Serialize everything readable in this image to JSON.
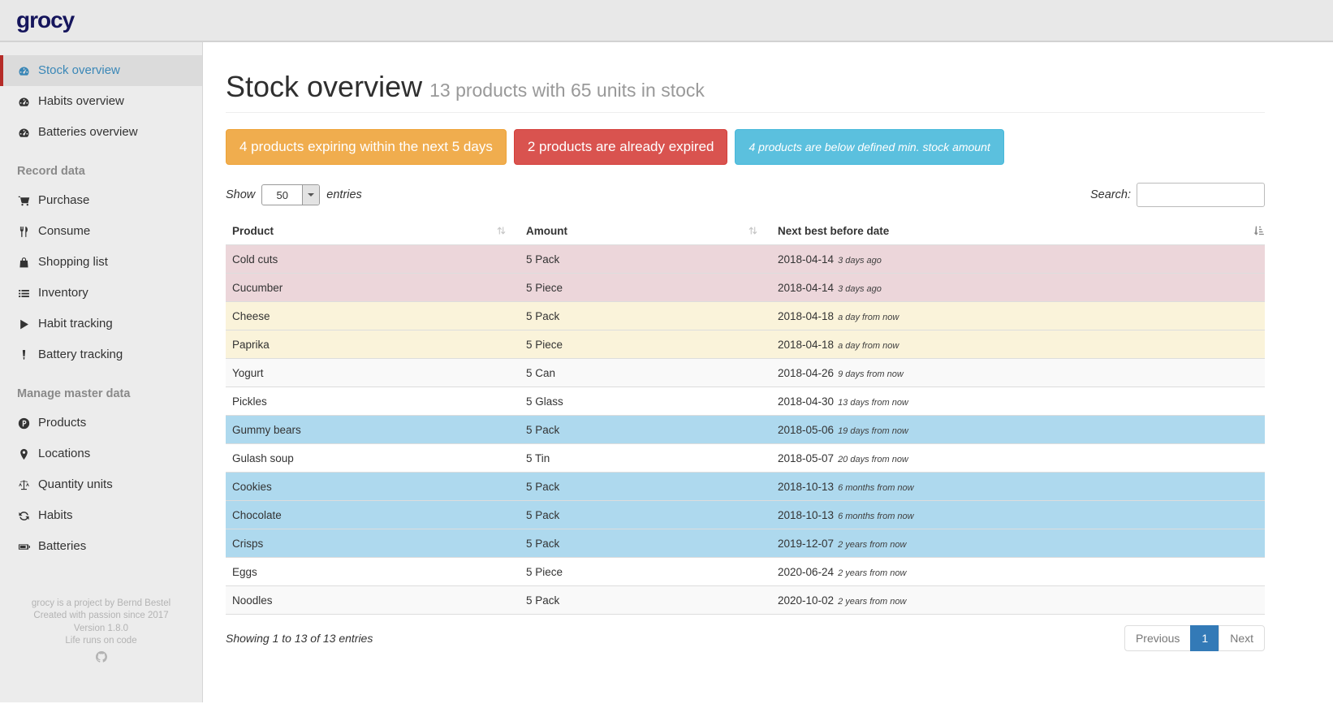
{
  "brand": {
    "logo_text": "grocy"
  },
  "sidebar": {
    "main_items": [
      {
        "label": "Stock overview",
        "icon": "gauge-icon",
        "active": true
      },
      {
        "label": "Habits overview",
        "icon": "gauge-icon",
        "active": false
      },
      {
        "label": "Batteries overview",
        "icon": "gauge-icon",
        "active": false
      }
    ],
    "record_section": {
      "header": "Record data",
      "items": [
        {
          "label": "Purchase",
          "icon": "shopping-cart-icon"
        },
        {
          "label": "Consume",
          "icon": "cutlery-icon"
        },
        {
          "label": "Shopping list",
          "icon": "shopping-bag-icon"
        },
        {
          "label": "Inventory",
          "icon": "list-icon"
        },
        {
          "label": "Habit tracking",
          "icon": "play-icon"
        },
        {
          "label": "Battery tracking",
          "icon": "pen-icon"
        }
      ]
    },
    "master_section": {
      "header": "Manage master data",
      "items": [
        {
          "label": "Products",
          "icon": "product-circle-icon"
        },
        {
          "label": "Locations",
          "icon": "map-marker-icon"
        },
        {
          "label": "Quantity units",
          "icon": "balance-scale-icon"
        },
        {
          "label": "Habits",
          "icon": "refresh-icon"
        },
        {
          "label": "Batteries",
          "icon": "battery-icon"
        }
      ]
    },
    "footer_lines": [
      "grocy is a project by Bernd Bestel",
      "Created with passion since 2017",
      "Version 1.8.0",
      "Life runs on code"
    ]
  },
  "page": {
    "title": "Stock overview",
    "subtitle": "13 products with 65 units in stock",
    "alerts": [
      {
        "label": "4 products expiring within the next 5 days",
        "type": "warning"
      },
      {
        "label": "2 products are already expired",
        "type": "danger"
      },
      {
        "label": "4 products are below defined min. stock amount",
        "type": "info"
      }
    ]
  },
  "controls": {
    "show_label": "Show",
    "page_length": "50",
    "entries_label": "entries",
    "search_label": "Search:",
    "search_value": ""
  },
  "table": {
    "columns": [
      {
        "label": "Product"
      },
      {
        "label": "Amount"
      },
      {
        "label": "Next best before date"
      }
    ],
    "rows": [
      {
        "product": "Cold cuts",
        "amount": "5 Pack",
        "date": "2018-04-14",
        "ago": "3 days ago",
        "status": "danger"
      },
      {
        "product": "Cucumber",
        "amount": "5 Piece",
        "date": "2018-04-14",
        "ago": "3 days ago",
        "status": "danger"
      },
      {
        "product": "Cheese",
        "amount": "5 Pack",
        "date": "2018-04-18",
        "ago": "a day from now",
        "status": "warning"
      },
      {
        "product": "Paprika",
        "amount": "5 Piece",
        "date": "2018-04-18",
        "ago": "a day from now",
        "status": "warning"
      },
      {
        "product": "Yogurt",
        "amount": "5 Can",
        "date": "2018-04-26",
        "ago": "9 days from now",
        "status": ""
      },
      {
        "product": "Pickles",
        "amount": "5 Glass",
        "date": "2018-04-30",
        "ago": "13 days from now",
        "status": ""
      },
      {
        "product": "Gummy bears",
        "amount": "5 Pack",
        "date": "2018-05-06",
        "ago": "19 days from now",
        "status": "info"
      },
      {
        "product": "Gulash soup",
        "amount": "5 Tin",
        "date": "2018-05-07",
        "ago": "20 days from now",
        "status": ""
      },
      {
        "product": "Cookies",
        "amount": "5 Pack",
        "date": "2018-10-13",
        "ago": "6 months from now",
        "status": "info"
      },
      {
        "product": "Chocolate",
        "amount": "5 Pack",
        "date": "2018-10-13",
        "ago": "6 months from now",
        "status": "info"
      },
      {
        "product": "Crisps",
        "amount": "5 Pack",
        "date": "2019-12-07",
        "ago": "2 years from now",
        "status": "info"
      },
      {
        "product": "Eggs",
        "amount": "5 Piece",
        "date": "2020-06-24",
        "ago": "2 years from now",
        "status": ""
      },
      {
        "product": "Noodles",
        "amount": "5 Pack",
        "date": "2020-10-02",
        "ago": "2 years from now",
        "status": ""
      }
    ],
    "info": "Showing 1 to 13 of 13 entries",
    "pagination": {
      "previous": "Previous",
      "pages": [
        "1"
      ],
      "next": "Next",
      "active_page": "1"
    }
  },
  "colors": {
    "brand_text": "#15155c",
    "sidebar_active_marker": "#b52b27",
    "active_link": "#3a87b7",
    "warning_btn": "#f0ad4e",
    "warning_btn_border": "#eea236",
    "danger_btn": "#d9534f",
    "danger_btn_border": "#d43f3a",
    "info_btn": "#5bc0de",
    "info_btn_border": "#46b8da",
    "row_danger": "#ecd6da",
    "row_warning": "#faf3da",
    "row_info": "#aed9ee",
    "row_stripe": "#f9f9f9",
    "active_page_bg": "#337ab7"
  }
}
